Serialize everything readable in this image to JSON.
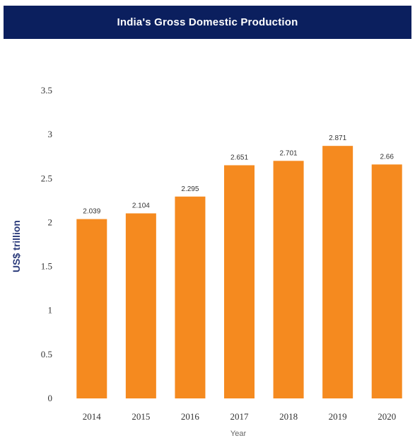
{
  "chart_data": {
    "type": "bar",
    "title": "India's Gross Domestic Production",
    "categories": [
      "2014",
      "2015",
      "2016",
      "2017",
      "2018",
      "2019",
      "2020"
    ],
    "values": [
      2.039,
      2.104,
      2.295,
      2.651,
      2.701,
      2.871,
      2.66
    ],
    "value_labels": [
      "2.039",
      "2.104",
      "2.295",
      "2.651",
      "2.701",
      "2.871",
      "2.66"
    ],
    "xlabel": "Year",
    "ylabel": "US$ trillion",
    "ylim": [
      0,
      3.5
    ],
    "yticks": [
      "0",
      "0.5",
      "1",
      "1.5",
      "2",
      "2.5",
      "3",
      "3.5"
    ],
    "grid": false,
    "bar_color": "#f58a1f",
    "title_background": "#0b1f5e"
  }
}
